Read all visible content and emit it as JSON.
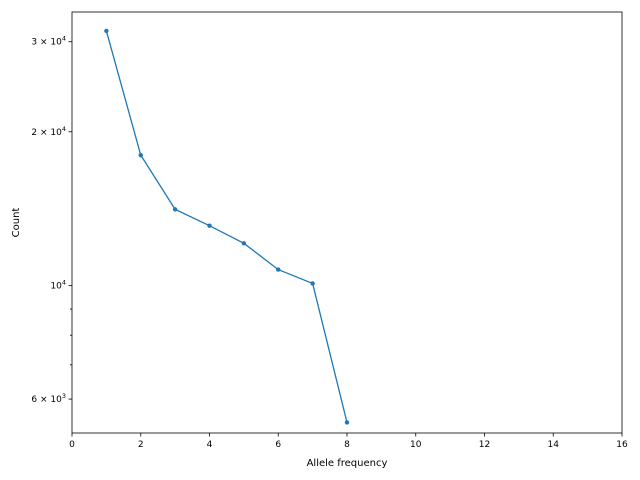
{
  "chart_data": {
    "type": "line",
    "xlabel": "Allele frequency",
    "ylabel": "Count",
    "xlim": [
      0,
      16
    ],
    "ylim": [
      5150,
      34300
    ],
    "yscale": "log",
    "grid": false,
    "color": "#1f77b4",
    "x_ticks": [
      {
        "value": 0,
        "label": "0"
      },
      {
        "value": 2,
        "label": "2"
      },
      {
        "value": 4,
        "label": "4"
      },
      {
        "value": 6,
        "label": "6"
      },
      {
        "value": 8,
        "label": "8"
      },
      {
        "value": 10,
        "label": "10"
      },
      {
        "value": 12,
        "label": "12"
      },
      {
        "value": 14,
        "label": "14"
      },
      {
        "value": 16,
        "label": "16"
      }
    ],
    "y_ticks": [
      {
        "value": 6000,
        "base": "6 × 10",
        "exp": "3"
      },
      {
        "value": 10000,
        "base": "10",
        "exp": "4"
      },
      {
        "value": 20000,
        "base": "2 × 10",
        "exp": "4"
      },
      {
        "value": 30000,
        "base": "3 × 10",
        "exp": "4"
      }
    ],
    "y_minor_ticks": [
      7000,
      8000,
      9000
    ],
    "series": [
      {
        "x": [
          1,
          2,
          3,
          4,
          5,
          6,
          7,
          8
        ],
        "y": [
          31500,
          18000,
          14100,
          13100,
          12100,
          10750,
          10100,
          5400
        ]
      }
    ]
  }
}
